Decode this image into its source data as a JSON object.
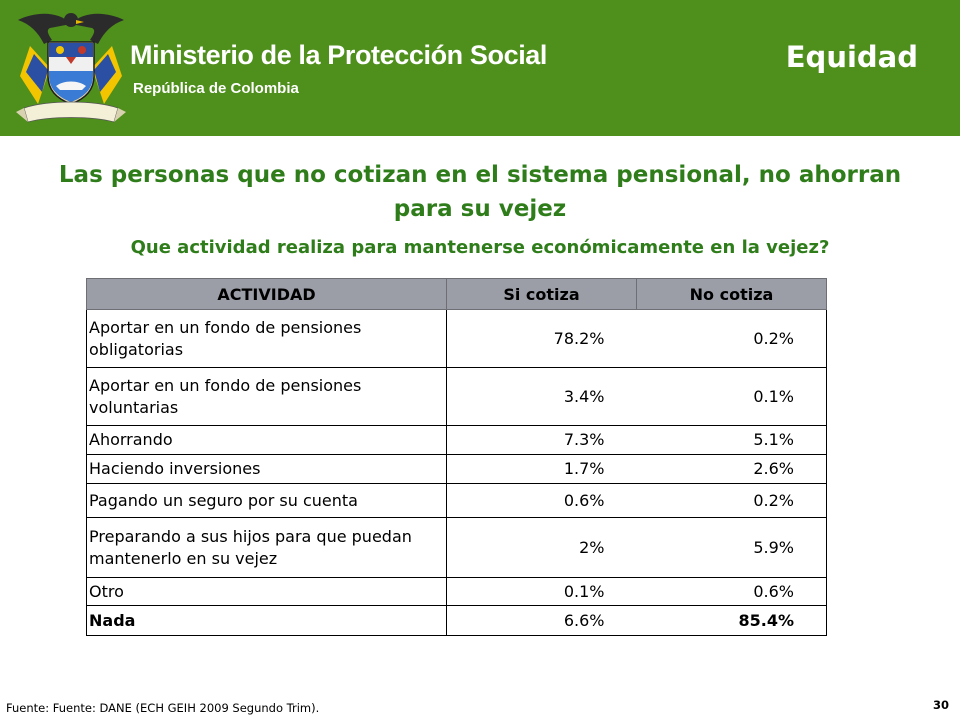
{
  "header": {
    "ministry": "Ministerio de la Protección Social",
    "republic": "República de Colombia",
    "section": "Equidad",
    "crest_motto": "Libertad y Orden",
    "background_color": "#4f8f1c"
  },
  "title": "Las personas que no cotizan en el sistema pensional, no ahorran para su vejez",
  "subtitle": "Que actividad realiza para mantenerse económicamente en la vejez?",
  "table": {
    "headers": [
      "ACTIVIDAD",
      "Si cotiza",
      "No cotiza"
    ],
    "rows": [
      {
        "actividad": "Aportar en un fondo de pensiones obligatorias",
        "si": "78.2%",
        "no": "0.2%"
      },
      {
        "actividad": "Aportar en un fondo de pensiones voluntarias",
        "si": "3.4%",
        "no": "0.1%"
      },
      {
        "actividad": "Ahorrando",
        "si": "7.3%",
        "no": "5.1%"
      },
      {
        "actividad": "Haciendo inversiones",
        "si": "1.7%",
        "no": "2.6%"
      },
      {
        "actividad": "Pagando un seguro por su cuenta",
        "si": "0.6%",
        "no": "0.2%"
      },
      {
        "actividad": "Preparando a sus hijos para que puedan mantenerlo en su vejez",
        "si": "2%",
        "no": "5.9%"
      },
      {
        "actividad": "Otro",
        "si": "0.1%",
        "no": "0.6%"
      },
      {
        "actividad": "Nada",
        "si": "6.6%",
        "no": "85.4%"
      }
    ],
    "header_color": "#9c9ea7"
  },
  "footer": {
    "source": "Fuente: Fuente: DANE (ECH GEIH 2009 Segundo Trim).",
    "page": "30"
  }
}
